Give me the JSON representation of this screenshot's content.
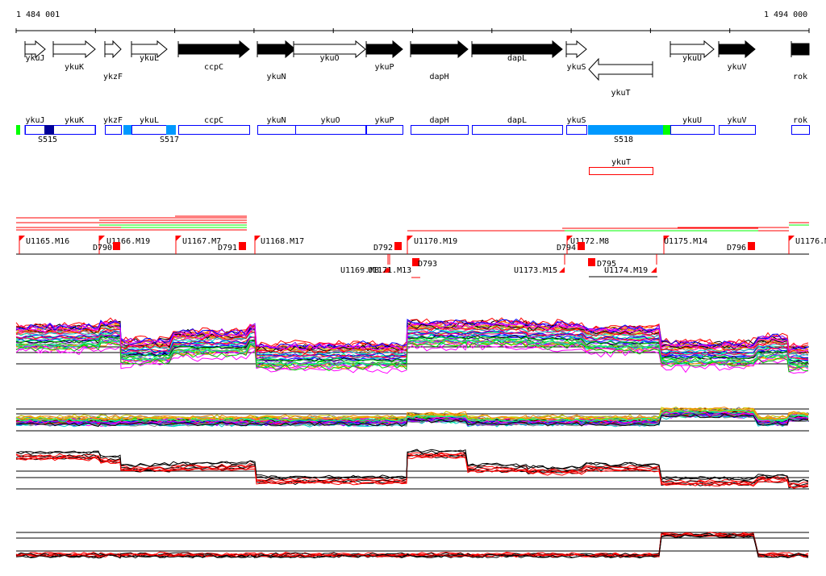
{
  "ruler": {
    "start": "1 484 001",
    "end": "1 494 000"
  },
  "genes": [
    "ykuJ",
    "ykuK",
    "ykzF",
    "ykuL",
    "ccpC",
    "ykuN",
    "ykuO",
    "ykuP",
    "dapH",
    "dapL",
    "ykuS",
    "ykuT",
    "ykuU",
    "ykuV",
    "rok"
  ],
  "segment_labels": [
    "ykuJ",
    "ykuK",
    "ykzF",
    "ykuL",
    "ccpC",
    "ykuN",
    "ykuO",
    "ykuP",
    "dapH",
    "dapL",
    "ykuS",
    "ykuU",
    "ykuV",
    "rok"
  ],
  "segments": [
    "S515",
    "S517",
    "S518"
  ],
  "antisense": "ykuT",
  "upstream_sites": [
    "U1165.M16",
    "U1166.M19",
    "U1167.M7",
    "U1168.M17",
    "U1169.M8",
    "U1171.M13",
    "U1170.M19",
    "U1172.M8",
    "U1173.M15",
    "U1174.M19",
    "U1175.M14",
    "U1176.M"
  ],
  "downstream_sites": [
    "D790",
    "D791",
    "D792",
    "D793",
    "D794",
    "D795",
    "D796"
  ],
  "colors": {
    "box": "#0000ff",
    "red": "#ff0000",
    "green": "#00ff00",
    "lightblue": "#0099ff",
    "darkblue": "#000099"
  }
}
